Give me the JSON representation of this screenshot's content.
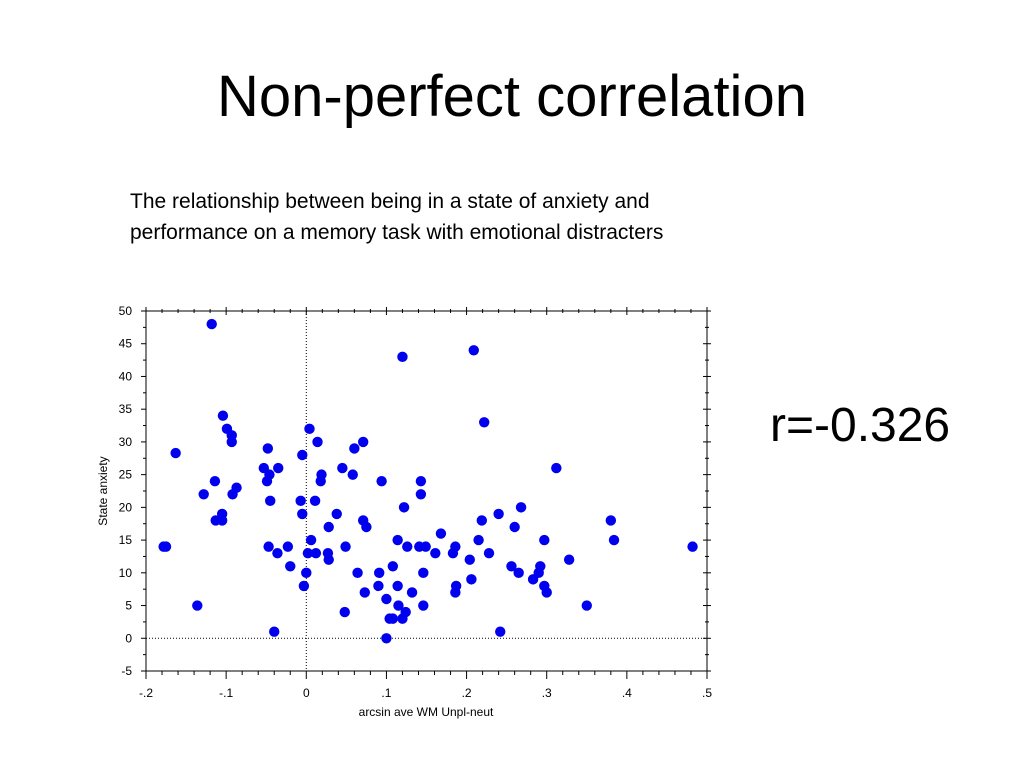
{
  "slide": {
    "title": "Non-perfect correlation",
    "caption": "The relationship between being in a state of anxiety and performance on a memory task with emotional distracters",
    "r_value": "r=-0.326"
  },
  "colors": {
    "point": "#0000ee",
    "axis": "#000000"
  },
  "chart_data": {
    "type": "scatter",
    "title": "",
    "xlabel": "arcsin ave WM Unpl-neut",
    "ylabel": "State anxiety",
    "xlim": [
      -0.2,
      0.5
    ],
    "ylim": [
      -5,
      50
    ],
    "x_ticks": [
      -0.2,
      -0.1,
      0,
      0.1,
      0.2,
      0.3,
      0.4,
      0.5
    ],
    "x_tick_labels": [
      "-.2",
      "-.1",
      "0",
      ".1",
      ".2",
      ".3",
      ".4",
      ".5"
    ],
    "y_ticks": [
      -5,
      0,
      5,
      10,
      15,
      20,
      25,
      30,
      35,
      40,
      45,
      50
    ],
    "y_tick_labels": [
      "-5",
      "0",
      "5",
      "10",
      "15",
      "20",
      "25",
      "30",
      "35",
      "40",
      "45",
      "50"
    ],
    "reference_lines": {
      "x": 0,
      "y": 0,
      "style": "dotted"
    },
    "grid": false,
    "points": [
      [
        -0.118,
        48
      ],
      [
        -0.163,
        28.3
      ],
      [
        -0.178,
        14
      ],
      [
        -0.175,
        14
      ],
      [
        -0.136,
        5
      ],
      [
        -0.128,
        22
      ],
      [
        -0.114,
        24
      ],
      [
        -0.113,
        18
      ],
      [
        -0.105,
        18
      ],
      [
        -0.105,
        19
      ],
      [
        -0.104,
        34
      ],
      [
        -0.099,
        32
      ],
      [
        -0.093,
        31
      ],
      [
        -0.093,
        30
      ],
      [
        -0.092,
        22
      ],
      [
        -0.087,
        23
      ],
      [
        -0.053,
        26
      ],
      [
        -0.048,
        29
      ],
      [
        -0.049,
        24
      ],
      [
        -0.046,
        25
      ],
      [
        -0.045,
        21
      ],
      [
        -0.047,
        14
      ],
      [
        -0.04,
        1
      ],
      [
        -0.035,
        26
      ],
      [
        -0.036,
        13
      ],
      [
        -0.023,
        14
      ],
      [
        -0.02,
        11
      ],
      [
        -0.007,
        21
      ],
      [
        -0.005,
        19
      ],
      [
        -0.005,
        28
      ],
      [
        -0.003,
        8
      ],
      [
        0.002,
        13
      ],
      [
        0.0,
        10
      ],
      [
        0.004,
        32
      ],
      [
        0.006,
        15
      ],
      [
        0.011,
        21
      ],
      [
        0.012,
        13
      ],
      [
        0.014,
        30
      ],
      [
        0.018,
        24
      ],
      [
        0.019,
        25
      ],
      [
        0.028,
        17
      ],
      [
        0.027,
        13
      ],
      [
        0.028,
        12
      ],
      [
        0.038,
        19
      ],
      [
        0.045,
        26
      ],
      [
        0.049,
        14
      ],
      [
        0.048,
        4
      ],
      [
        0.058,
        25
      ],
      [
        0.06,
        29
      ],
      [
        0.064,
        10
      ],
      [
        0.071,
        30
      ],
      [
        0.071,
        18
      ],
      [
        0.075,
        17
      ],
      [
        0.073,
        7
      ],
      [
        0.09,
        8
      ],
      [
        0.091,
        10
      ],
      [
        0.094,
        24
      ],
      [
        0.1,
        6
      ],
      [
        0.1,
        0
      ],
      [
        0.104,
        3
      ],
      [
        0.108,
        11
      ],
      [
        0.108,
        3
      ],
      [
        0.114,
        15
      ],
      [
        0.114,
        8
      ],
      [
        0.115,
        5
      ],
      [
        0.12,
        43
      ],
      [
        0.122,
        20
      ],
      [
        0.12,
        3
      ],
      [
        0.124,
        4
      ],
      [
        0.126,
        14
      ],
      [
        0.132,
        7
      ],
      [
        0.141,
        14
      ],
      [
        0.143,
        22
      ],
      [
        0.143,
        24
      ],
      [
        0.146,
        10
      ],
      [
        0.146,
        5
      ],
      [
        0.149,
        14
      ],
      [
        0.161,
        13
      ],
      [
        0.168,
        16
      ],
      [
        0.183,
        13
      ],
      [
        0.186,
        14
      ],
      [
        0.186,
        7
      ],
      [
        0.187,
        8
      ],
      [
        0.204,
        12
      ],
      [
        0.206,
        9
      ],
      [
        0.209,
        44
      ],
      [
        0.215,
        15
      ],
      [
        0.219,
        18
      ],
      [
        0.222,
        33
      ],
      [
        0.228,
        13
      ],
      [
        0.24,
        19
      ],
      [
        0.242,
        1
      ],
      [
        0.256,
        11
      ],
      [
        0.26,
        17
      ],
      [
        0.265,
        10
      ],
      [
        0.268,
        20
      ],
      [
        0.283,
        9
      ],
      [
        0.29,
        10
      ],
      [
        0.292,
        11
      ],
      [
        0.297,
        15
      ],
      [
        0.297,
        8
      ],
      [
        0.3,
        7
      ],
      [
        0.312,
        26
      ],
      [
        0.328,
        12
      ],
      [
        0.35,
        5
      ],
      [
        0.38,
        18
      ],
      [
        0.384,
        15
      ],
      [
        0.482,
        14
      ]
    ]
  }
}
